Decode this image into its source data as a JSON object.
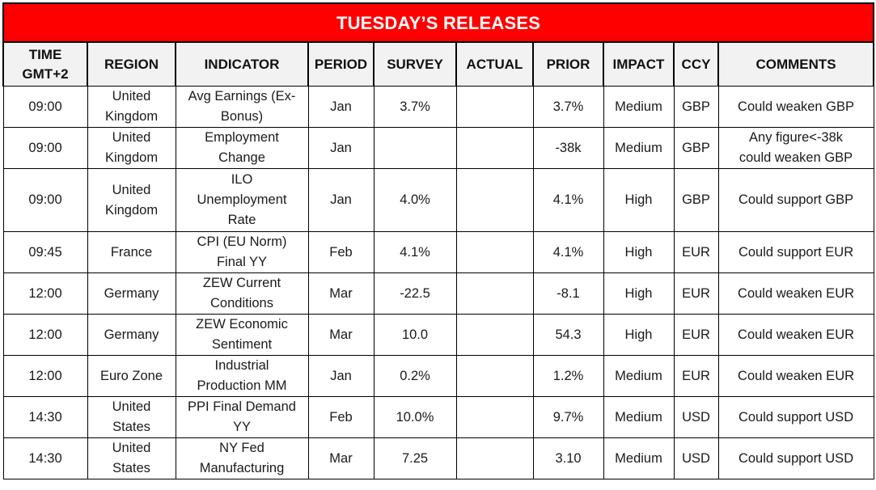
{
  "title": "TUESDAY’S RELEASES",
  "columns": [
    {
      "key": "time",
      "label_line1": "TIME",
      "label_line2": "GMT+2"
    },
    {
      "key": "region",
      "label": "REGION"
    },
    {
      "key": "indicator",
      "label": "INDICATOR"
    },
    {
      "key": "period",
      "label": "PERIOD"
    },
    {
      "key": "survey",
      "label": "SURVEY"
    },
    {
      "key": "actual",
      "label": "ACTUAL"
    },
    {
      "key": "prior",
      "label": "PRIOR"
    },
    {
      "key": "impact",
      "label": "IMPACT"
    },
    {
      "key": "ccy",
      "label": "CCY"
    },
    {
      "key": "comments",
      "label": "COMMENTS"
    }
  ],
  "rows": [
    {
      "time": "09:00",
      "region": [
        "United",
        "Kingdom"
      ],
      "indicator": [
        "Avg Earnings (Ex-",
        "Bonus)"
      ],
      "period": "Jan",
      "survey": "3.7%",
      "actual": "",
      "prior": "3.7%",
      "impact": "Medium",
      "ccy": "GBP",
      "comments": [
        "Could weaken GBP"
      ]
    },
    {
      "time": "09:00",
      "region": [
        "United",
        "Kingdom"
      ],
      "indicator": [
        "Employment",
        "Change"
      ],
      "period": "Jan",
      "survey": "",
      "actual": "",
      "prior": "-38k",
      "impact": "Medium",
      "ccy": "GBP",
      "comments": [
        "Any figure<-38k",
        "could weaken GBP"
      ]
    },
    {
      "time": "09:00",
      "region": [
        "United",
        "Kingdom"
      ],
      "indicator": [
        "ILO",
        "Unemployment",
        "Rate"
      ],
      "period": "Jan",
      "survey": "4.0%",
      "actual": "",
      "prior": "4.1%",
      "impact": "High",
      "ccy": "GBP",
      "comments": [
        "Could support GBP"
      ]
    },
    {
      "time": "09:45",
      "region": [
        "France"
      ],
      "indicator": [
        "CPI (EU Norm)",
        "Final YY"
      ],
      "period": "Feb",
      "survey": "4.1%",
      "actual": "",
      "prior": "4.1%",
      "impact": "High",
      "ccy": "EUR",
      "comments": [
        "Could support EUR"
      ]
    },
    {
      "time": "12:00",
      "region": [
        "Germany"
      ],
      "indicator": [
        "ZEW Current",
        "Conditions"
      ],
      "period": "Mar",
      "survey": "-22.5",
      "actual": "",
      "prior": "-8.1",
      "impact": "High",
      "ccy": "EUR",
      "comments": [
        "Could weaken EUR"
      ]
    },
    {
      "time": "12:00",
      "region": [
        "Germany"
      ],
      "indicator": [
        "ZEW Economic",
        "Sentiment"
      ],
      "period": "Mar",
      "survey": "10.0",
      "actual": "",
      "prior": "54.3",
      "impact": "High",
      "ccy": "EUR",
      "comments": [
        "Could weaken EUR"
      ]
    },
    {
      "time": "12:00",
      "region": [
        "Euro Zone"
      ],
      "indicator": [
        "Industrial",
        "Production MM"
      ],
      "period": "Jan",
      "survey": "0.2%",
      "actual": "",
      "prior": "1.2%",
      "impact": "Medium",
      "ccy": "EUR",
      "comments": [
        "Could weaken EUR"
      ]
    },
    {
      "time": "14:30",
      "region": [
        "United",
        "States"
      ],
      "indicator": [
        "PPI Final Demand",
        "YY"
      ],
      "period": "Feb",
      "survey": "10.0%",
      "actual": "",
      "prior": "9.7%",
      "impact": "Medium",
      "ccy": "USD",
      "comments": [
        "Could support USD"
      ]
    },
    {
      "time": "14:30",
      "region": [
        "United",
        "States"
      ],
      "indicator": [
        "NY Fed",
        "Manufacturing"
      ],
      "period": "Mar",
      "survey": "7.25",
      "actual": "",
      "prior": "3.10",
      "impact": "Medium",
      "ccy": "USD",
      "comments": [
        "Could support USD"
      ]
    }
  ],
  "colors": {
    "title_bg": "#ff0000",
    "title_text": "#ffffff",
    "header_bg": "#f2f2f2",
    "border": "#000000"
  }
}
